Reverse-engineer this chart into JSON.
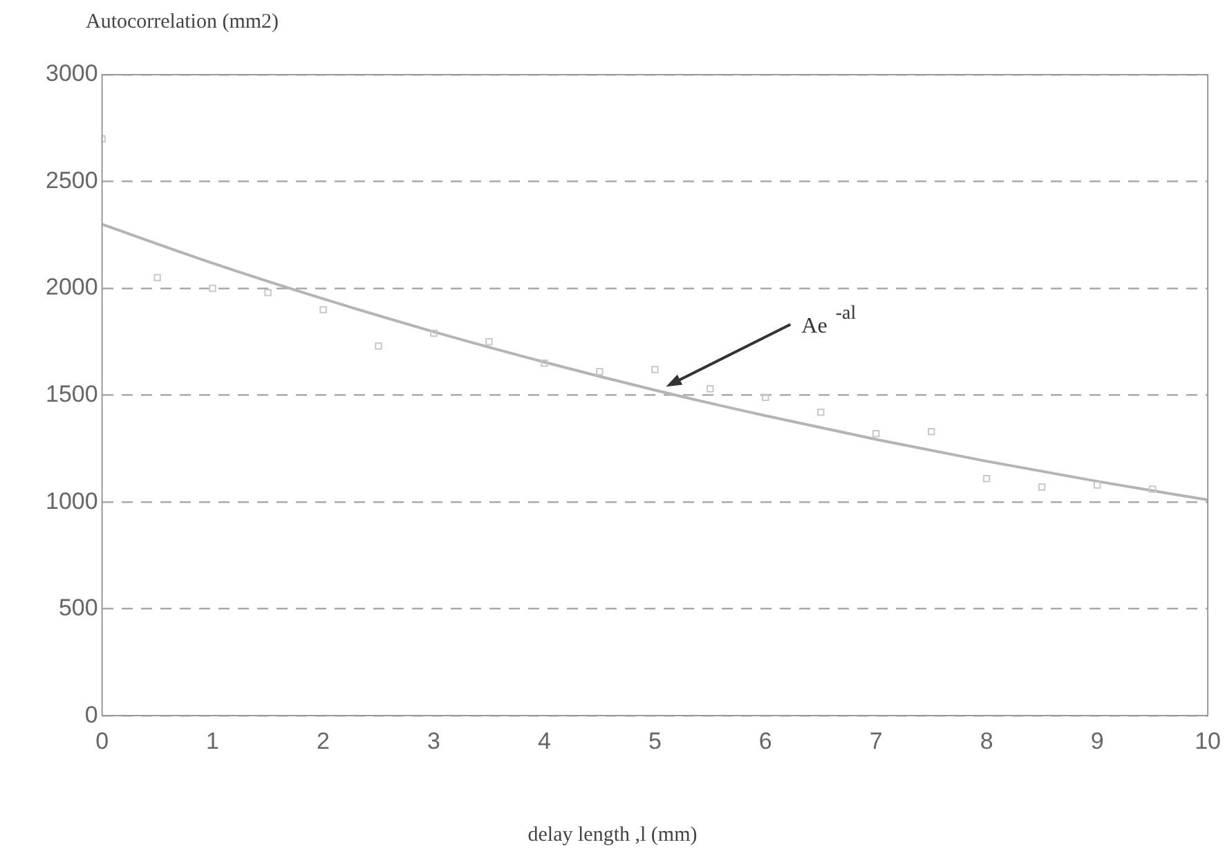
{
  "chart_data": {
    "type": "scatter",
    "ylabel": "Autocorrelation (mm2)",
    "xlabel": "delay length ,l (mm)",
    "x": [
      0,
      0.5,
      1,
      1.5,
      2,
      2.5,
      3,
      3.5,
      4,
      4.5,
      5,
      5.5,
      6,
      6.5,
      7,
      7.5,
      8,
      8.5,
      9,
      9.5
    ],
    "series": [
      {
        "marker": "square",
        "color": "#c8c8c8",
        "values": [
          2700,
          2050,
          2000,
          1980,
          1900,
          1730,
          1790,
          1750,
          1650,
          1610,
          1620,
          1530,
          1490,
          1420,
          1320,
          1330,
          1110,
          1070,
          1080,
          1060
        ]
      },
      {
        "type": "line",
        "color": "#b4b4b4",
        "x": [
          0,
          1,
          2,
          3,
          4,
          5,
          6,
          7,
          8,
          9,
          10
        ],
        "values": [
          2300,
          2118,
          1951,
          1797,
          1655,
          1524,
          1404,
          1293,
          1191,
          1097,
          1010
        ]
      }
    ],
    "xlim": [
      0,
      10
    ],
    "xticks": [
      0,
      1,
      2,
      3,
      4,
      5,
      6,
      7,
      8,
      9,
      10
    ],
    "ylim": [
      0,
      3000
    ],
    "yticks": [
      0,
      500,
      1000,
      1500,
      2000,
      2500,
      3000
    ],
    "grid": "y",
    "legend": false,
    "annotations": [
      {
        "text": "Ae$^{-al}$",
        "x": 5.1,
        "y": 1540
      }
    ]
  }
}
